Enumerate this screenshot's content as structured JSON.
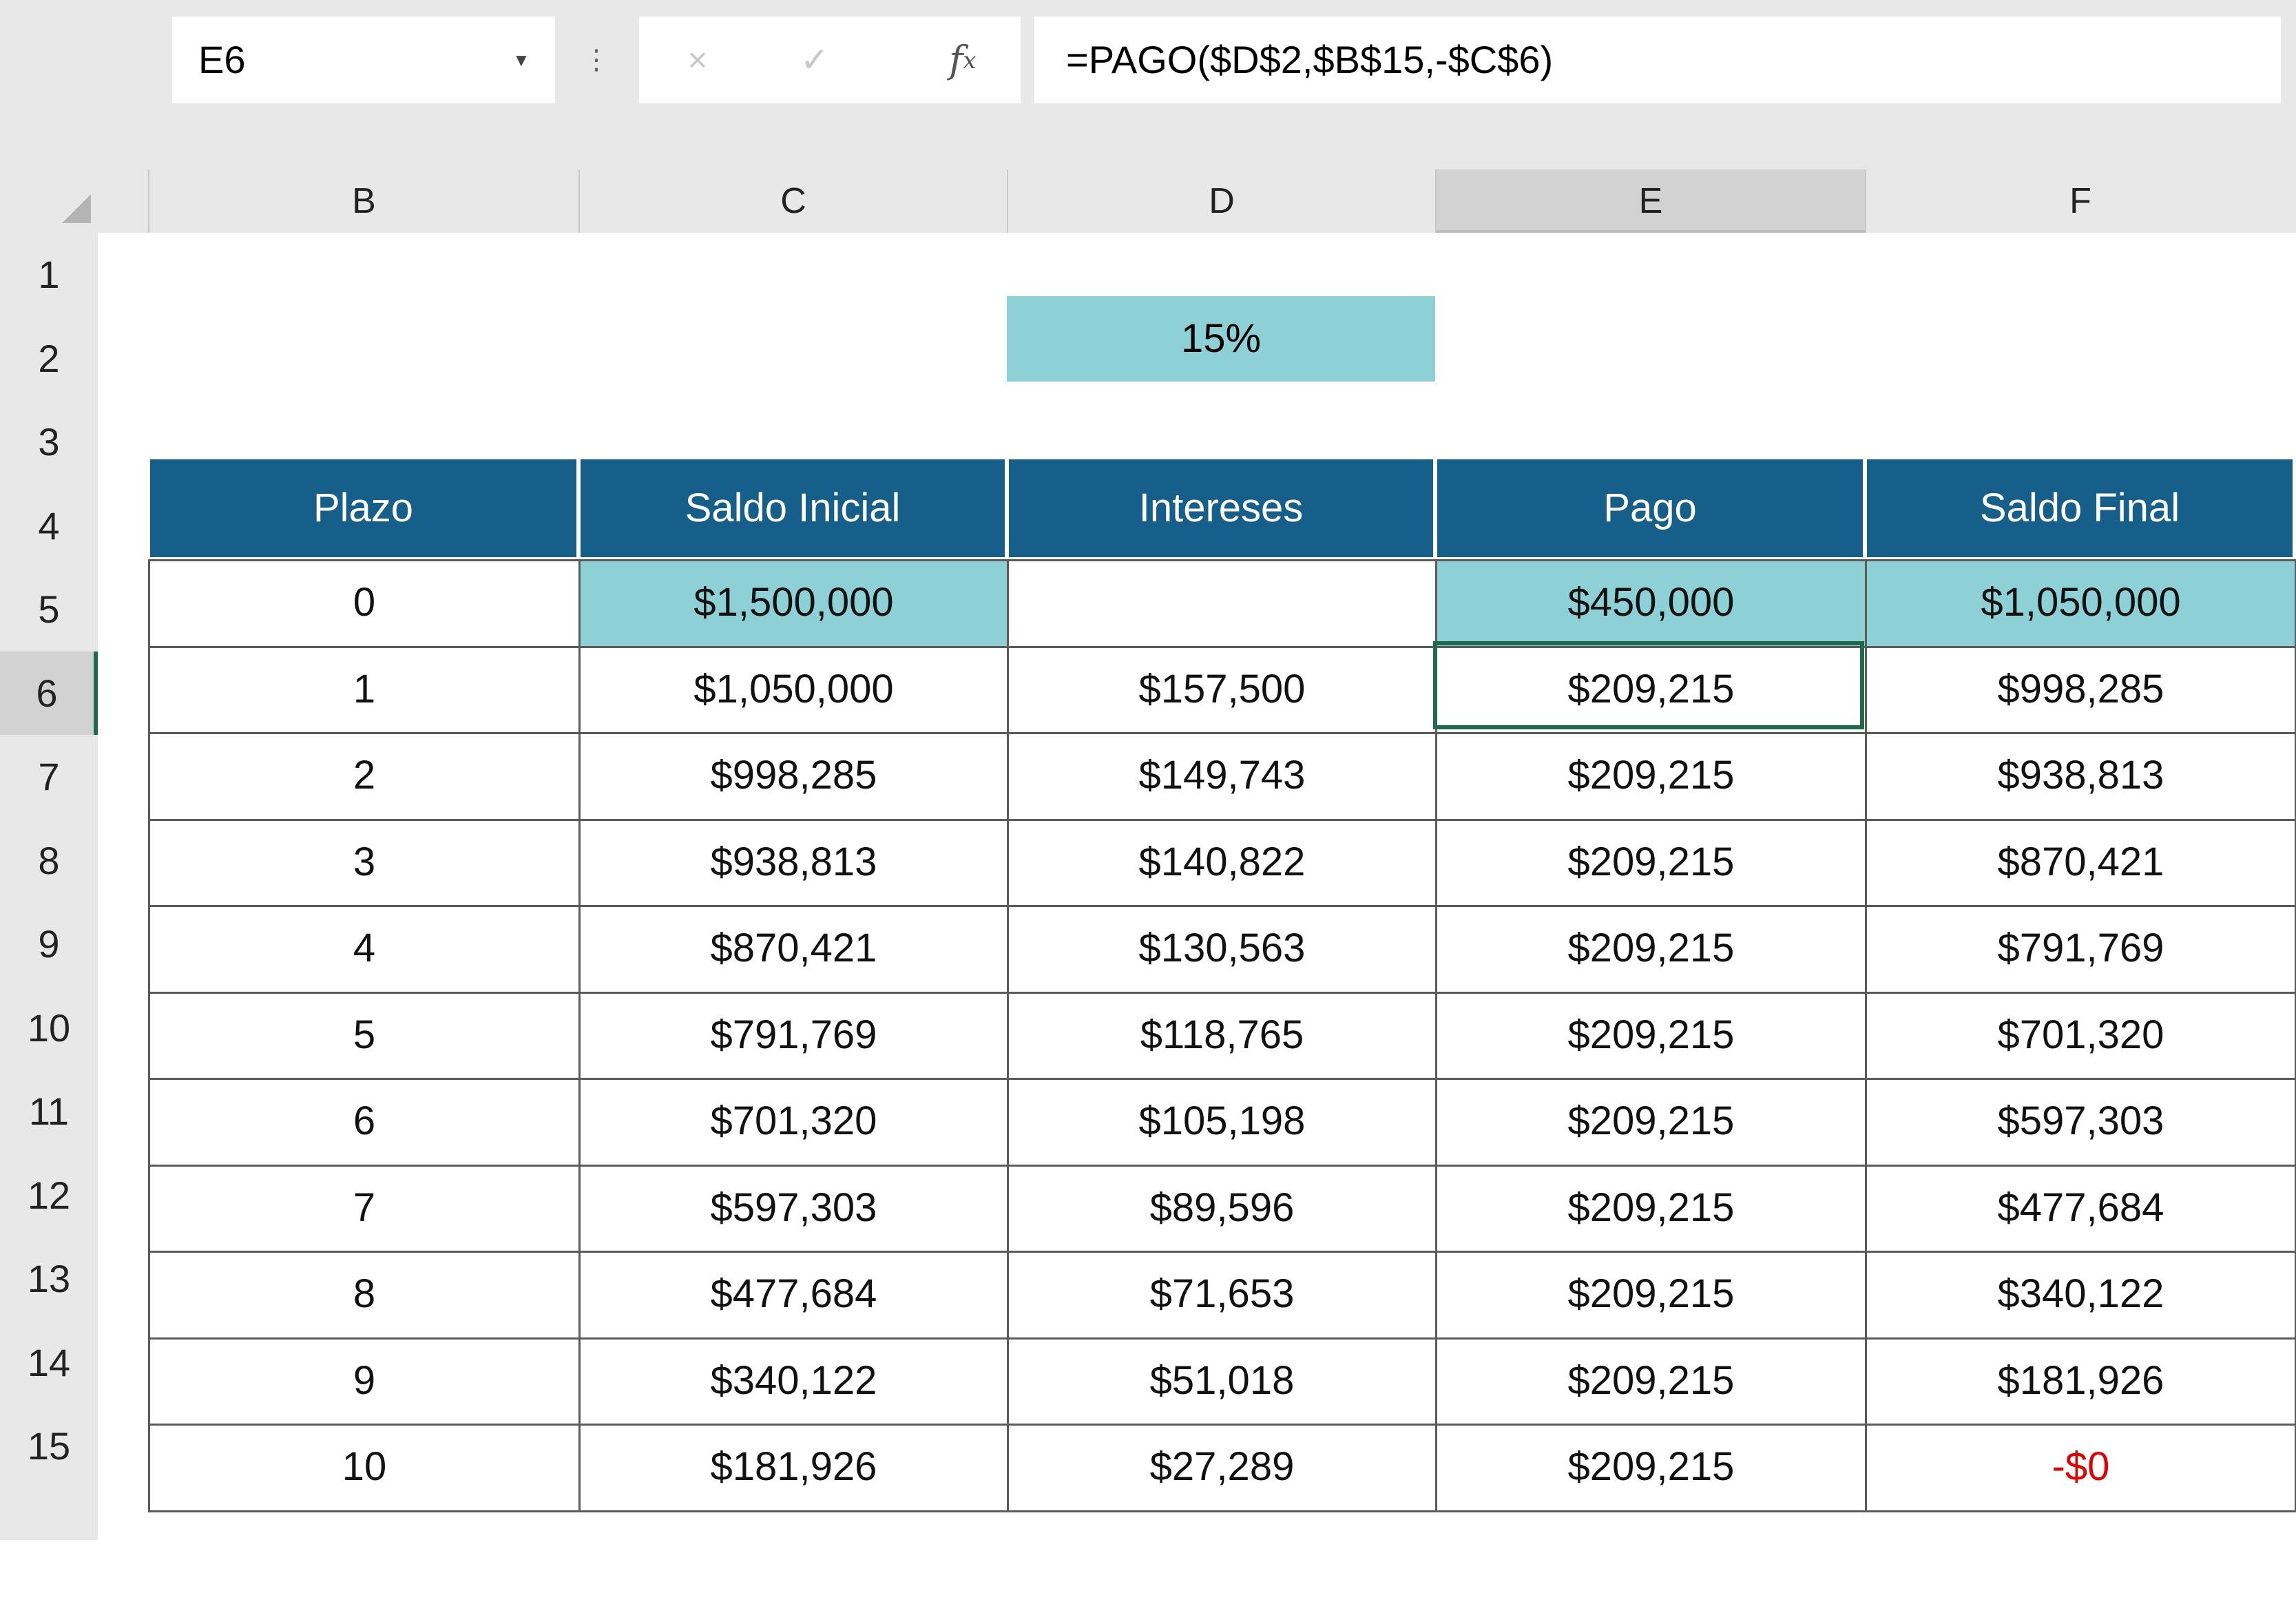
{
  "formula_bar": {
    "name_box": "E6",
    "cancel_icon": "×",
    "enter_icon": "✓",
    "fx_label": "f",
    "fx_sub": "x",
    "formula": "=PAGO($D$2,$B$15,-$C$6)"
  },
  "columns": [
    "B",
    "C",
    "D",
    "E",
    "F"
  ],
  "active_column": "E",
  "rows": [
    "1",
    "2",
    "3",
    "4",
    "5",
    "6",
    "7",
    "8",
    "9",
    "10",
    "11",
    "12",
    "13",
    "14",
    "15"
  ],
  "active_row": "6",
  "rate_cell": "15%",
  "table": {
    "headers": [
      "Plazo",
      "Saldo Inicial",
      "Intereses",
      "Pago",
      "Saldo Final"
    ],
    "rows": [
      [
        "0",
        "$1,500,000",
        "",
        "$450,000",
        "$1,050,000"
      ],
      [
        "1",
        "$1,050,000",
        "$157,500",
        "$209,215",
        "$998,285"
      ],
      [
        "2",
        "$998,285",
        "$149,743",
        "$209,215",
        "$938,813"
      ],
      [
        "3",
        "$938,813",
        "$140,822",
        "$209,215",
        "$870,421"
      ],
      [
        "4",
        "$870,421",
        "$130,563",
        "$209,215",
        "$791,769"
      ],
      [
        "5",
        "$791,769",
        "$118,765",
        "$209,215",
        "$701,320"
      ],
      [
        "6",
        "$701,320",
        "$105,198",
        "$209,215",
        "$597,303"
      ],
      [
        "7",
        "$597,303",
        "$89,596",
        "$209,215",
        "$477,684"
      ],
      [
        "8",
        "$477,684",
        "$71,653",
        "$209,215",
        "$340,122"
      ],
      [
        "9",
        "$340,122",
        "$51,018",
        "$209,215",
        "$181,926"
      ],
      [
        "10",
        "$181,926",
        "$27,289",
        "$209,215",
        "-$0"
      ]
    ]
  },
  "colors": {
    "header_fill": "#155f8a",
    "highlight_fill": "#8dd0d6",
    "selection_border": "#1e6a4b",
    "negative_text": "#e00000"
  }
}
